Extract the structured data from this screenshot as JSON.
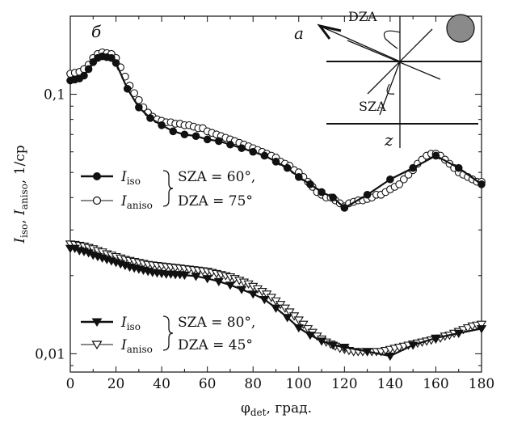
{
  "colors": {
    "ink": "#111111",
    "marker_open_fill": "#ffffff",
    "sun_disk": "#8a8a8a"
  },
  "chart_data": {
    "type": "line",
    "panel_label": "б",
    "xlabel": "φ_det, град.",
    "xlabel_main": "φ",
    "xlabel_sub": "det",
    "xlabel_suffix": ", град.",
    "ylabel_parts": [
      "I",
      "iso",
      ", ",
      "I",
      "aniso",
      ", 1/ср"
    ],
    "x_scale": "linear",
    "y_scale": "log",
    "xlim": [
      0,
      180
    ],
    "ylim": [
      0.0085,
      0.2
    ],
    "x_ticks": [
      0,
      20,
      40,
      60,
      80,
      100,
      120,
      140,
      160,
      180
    ],
    "x_tick_labels": [
      "0",
      "20",
      "40",
      "60",
      "80",
      "100",
      "120",
      "140",
      "160",
      "180"
    ],
    "y_major_ticks": [
      0.01,
      0.1
    ],
    "y_major_labels": [
      "0,01",
      "0,1"
    ],
    "grid": false,
    "series": [
      {
        "name": "I_iso (SZA = 60°, DZA = 75°)",
        "marker": "filled-circle",
        "line": true,
        "x": [
          0,
          2,
          4,
          6,
          8,
          10,
          12,
          14,
          16,
          18,
          20,
          25,
          30,
          35,
          40,
          45,
          50,
          55,
          60,
          65,
          70,
          75,
          80,
          85,
          90,
          95,
          100,
          105,
          110,
          115,
          120,
          130,
          140,
          150,
          160,
          170,
          180
        ],
        "y": [
          0.113,
          0.114,
          0.115,
          0.118,
          0.125,
          0.133,
          0.138,
          0.14,
          0.139,
          0.138,
          0.132,
          0.105,
          0.089,
          0.081,
          0.076,
          0.072,
          0.07,
          0.069,
          0.067,
          0.066,
          0.064,
          0.062,
          0.06,
          0.058,
          0.055,
          0.052,
          0.048,
          0.045,
          0.042,
          0.04,
          0.0365,
          0.041,
          0.047,
          0.052,
          0.058,
          0.052,
          0.045
        ]
      },
      {
        "name": "I_aniso (SZA = 60°, DZA = 75°)",
        "marker": "open-circle",
        "line": false,
        "x": [
          0,
          2,
          4,
          6,
          8,
          10,
          12,
          14,
          16,
          18,
          20,
          22,
          24,
          26,
          28,
          30,
          32,
          34,
          36,
          38,
          40,
          42,
          44,
          46,
          48,
          50,
          52,
          54,
          56,
          58,
          60,
          62,
          64,
          66,
          68,
          70,
          72,
          74,
          76,
          78,
          80,
          82,
          84,
          86,
          88,
          90,
          92,
          94,
          96,
          98,
          100,
          102,
          104,
          106,
          108,
          110,
          112,
          114,
          116,
          118,
          120,
          122,
          124,
          126,
          128,
          130,
          132,
          134,
          136,
          138,
          140,
          142,
          144,
          146,
          148,
          150,
          152,
          154,
          156,
          158,
          160,
          162,
          164,
          166,
          168,
          170,
          172,
          174,
          176,
          178,
          180
        ],
        "y": [
          0.12,
          0.121,
          0.122,
          0.125,
          0.13,
          0.138,
          0.143,
          0.145,
          0.144,
          0.143,
          0.138,
          0.127,
          0.117,
          0.108,
          0.101,
          0.095,
          0.089,
          0.085,
          0.082,
          0.08,
          0.079,
          0.078,
          0.078,
          0.077,
          0.077,
          0.076,
          0.076,
          0.075,
          0.074,
          0.074,
          0.072,
          0.071,
          0.07,
          0.069,
          0.068,
          0.067,
          0.066,
          0.065,
          0.064,
          0.063,
          0.062,
          0.061,
          0.06,
          0.059,
          0.058,
          0.057,
          0.055,
          0.054,
          0.053,
          0.051,
          0.05,
          0.048,
          0.046,
          0.044,
          0.042,
          0.041,
          0.04,
          0.04,
          0.039,
          0.038,
          0.037,
          0.038,
          0.0385,
          0.039,
          0.039,
          0.0395,
          0.04,
          0.041,
          0.041,
          0.042,
          0.043,
          0.044,
          0.045,
          0.047,
          0.049,
          0.051,
          0.054,
          0.056,
          0.058,
          0.059,
          0.059,
          0.058,
          0.056,
          0.054,
          0.052,
          0.05,
          0.049,
          0.048,
          0.047,
          0.046,
          0.046
        ]
      },
      {
        "name": "I_iso (SZA = 80°, DZA = 45°)",
        "marker": "filled-triangle-down",
        "line": true,
        "x": [
          0,
          2,
          4,
          6,
          8,
          10,
          12,
          14,
          16,
          18,
          20,
          22,
          24,
          26,
          28,
          30,
          32,
          34,
          36,
          38,
          40,
          42,
          44,
          46,
          48,
          50,
          55,
          60,
          65,
          70,
          75,
          80,
          85,
          90,
          95,
          100,
          105,
          110,
          115,
          120,
          130,
          140,
          150,
          160,
          170,
          180
        ],
        "y": [
          0.0255,
          0.0255,
          0.025,
          0.0248,
          0.0245,
          0.024,
          0.0237,
          0.0234,
          0.0231,
          0.0228,
          0.0225,
          0.0222,
          0.0219,
          0.0216,
          0.0214,
          0.0212,
          0.021,
          0.0208,
          0.0206,
          0.0205,
          0.0204,
          0.0203,
          0.0203,
          0.0202,
          0.0202,
          0.0201,
          0.0199,
          0.0195,
          0.019,
          0.0184,
          0.0177,
          0.017,
          0.0162,
          0.015,
          0.0138,
          0.0126,
          0.0118,
          0.0112,
          0.0108,
          0.0106,
          0.0102,
          0.0098,
          0.0108,
          0.0115,
          0.012,
          0.0125
        ]
      },
      {
        "name": "I_aniso (SZA = 80°, DZA = 45°)",
        "marker": "open-triangle-down",
        "line": false,
        "x": [
          0,
          2,
          4,
          6,
          8,
          10,
          12,
          14,
          16,
          18,
          20,
          22,
          24,
          26,
          28,
          30,
          32,
          34,
          36,
          38,
          40,
          42,
          44,
          46,
          48,
          50,
          52,
          54,
          56,
          58,
          60,
          62,
          64,
          66,
          68,
          70,
          72,
          74,
          76,
          78,
          80,
          82,
          84,
          86,
          88,
          90,
          92,
          94,
          96,
          98,
          100,
          102,
          104,
          106,
          108,
          110,
          112,
          114,
          116,
          118,
          120,
          122,
          124,
          126,
          128,
          130,
          132,
          134,
          136,
          138,
          140,
          142,
          144,
          146,
          148,
          150,
          152,
          154,
          156,
          158,
          160,
          162,
          164,
          166,
          168,
          170,
          172,
          174,
          176,
          178,
          180
        ],
        "y": [
          0.0265,
          0.0264,
          0.0262,
          0.026,
          0.0257,
          0.0254,
          0.025,
          0.0247,
          0.0243,
          0.024,
          0.0237,
          0.0234,
          0.0231,
          0.0229,
          0.0227,
          0.0225,
          0.0223,
          0.0221,
          0.022,
          0.0219,
          0.0218,
          0.0217,
          0.0216,
          0.0215,
          0.0214,
          0.0213,
          0.0212,
          0.0211,
          0.021,
          0.0209,
          0.0208,
          0.0206,
          0.0204,
          0.0202,
          0.02,
          0.0198,
          0.0195,
          0.0192,
          0.0189,
          0.0186,
          0.0182,
          0.0178,
          0.0174,
          0.017,
          0.0165,
          0.016,
          0.0155,
          0.015,
          0.0145,
          0.014,
          0.0135,
          0.013,
          0.0125,
          0.0121,
          0.0117,
          0.0114,
          0.0111,
          0.0109,
          0.0107,
          0.0105,
          0.0104,
          0.0103,
          0.0102,
          0.0102,
          0.0102,
          0.0102,
          0.0102,
          0.0102,
          0.0102,
          0.0103,
          0.0104,
          0.0105,
          0.0106,
          0.0107,
          0.0108,
          0.0109,
          0.011,
          0.0111,
          0.0112,
          0.0113,
          0.0114,
          0.0115,
          0.0117,
          0.0118,
          0.012,
          0.0122,
          0.0124,
          0.0126,
          0.0128,
          0.0129,
          0.013
        ]
      }
    ],
    "legends": [
      {
        "entries": [
          {
            "main": "I",
            "sub": "iso",
            "marker": "filled-circle",
            "line": "thick"
          },
          {
            "main": "I",
            "sub": "aniso",
            "marker": "open-circle",
            "line": "thin"
          }
        ],
        "conditions": [
          "SZA = 60°,",
          "DZA = 75°"
        ]
      },
      {
        "entries": [
          {
            "main": "I",
            "sub": "iso",
            "marker": "filled-triangle-down",
            "line": "thick"
          },
          {
            "main": "I",
            "sub": "aniso",
            "marker": "open-triangle-down",
            "line": "thin"
          }
        ],
        "conditions": [
          "SZA = 80°,",
          "DZA = 45°"
        ]
      }
    ],
    "inset": {
      "panel_label": "а",
      "labels": {
        "dza": "DZA",
        "sza": "SZA",
        "z": "z"
      },
      "sun_disk": true
    }
  }
}
